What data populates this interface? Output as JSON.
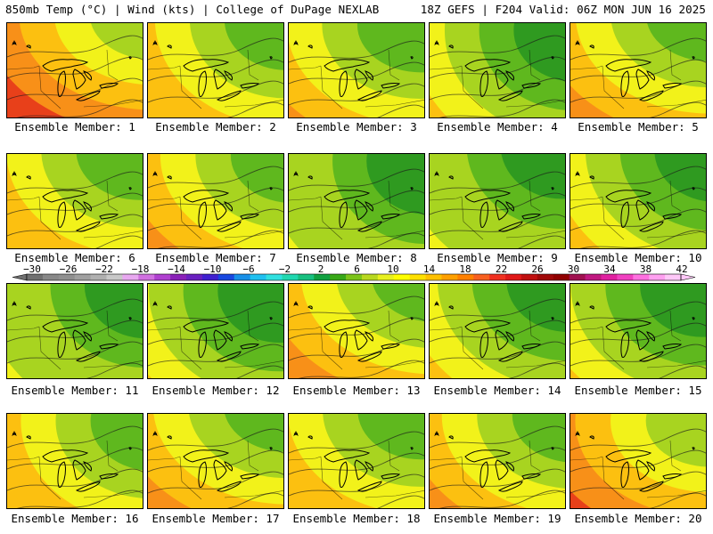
{
  "header": {
    "left": "850mb Temp (°C) | Wind (kts) | College of DuPage NEXLAB",
    "right": "18Z GEFS | F204 Valid: 06Z MON JUN 16 2025"
  },
  "members": [
    {
      "caption": "Ensemble Member: 1",
      "warmth": 0.7
    },
    {
      "caption": "Ensemble Member: 2",
      "warmth": 0.45
    },
    {
      "caption": "Ensemble Member: 3",
      "warmth": 0.6
    },
    {
      "caption": "Ensemble Member: 4",
      "warmth": 0.4
    },
    {
      "caption": "Ensemble Member: 5",
      "warmth": 0.62
    },
    {
      "caption": "Ensemble Member: 6",
      "warmth": 0.5
    },
    {
      "caption": "Ensemble Member: 7",
      "warmth": 0.6
    },
    {
      "caption": "Ensemble Member: 8",
      "warmth": 0.32
    },
    {
      "caption": "Ensemble Member: 9",
      "warmth": 0.3
    },
    {
      "caption": "Ensemble Member: 10",
      "warmth": 0.4
    },
    {
      "caption": "Ensemble Member: 11",
      "warmth": 0.35
    },
    {
      "caption": "Ensemble Member: 12",
      "warmth": 0.4
    },
    {
      "caption": "Ensemble Member: 13",
      "warmth": 0.62
    },
    {
      "caption": "Ensemble Member: 14",
      "warmth": 0.4
    },
    {
      "caption": "Ensemble Member: 15",
      "warmth": 0.42
    },
    {
      "caption": "Ensemble Member: 16",
      "warmth": 0.48
    },
    {
      "caption": "Ensemble Member: 17",
      "warmth": 0.62
    },
    {
      "caption": "Ensemble Member: 18",
      "warmth": 0.52
    },
    {
      "caption": "Ensemble Member: 19",
      "warmth": 0.62
    },
    {
      "caption": "Ensemble Member: 20",
      "warmth": 0.68
    }
  ],
  "colorbar": {
    "labels": [
      "-30",
      "-26",
      "-22",
      "-18",
      "-14",
      "-10",
      "-6",
      "-2",
      "2",
      "6",
      "10",
      "14",
      "18",
      "22",
      "26",
      "30",
      "34",
      "38",
      "42"
    ],
    "colors": [
      "#707070",
      "#888888",
      "#909090",
      "#a0a0a0",
      "#b0b0b0",
      "#c8c8c8",
      "#e8a8f0",
      "#d070e0",
      "#b040d0",
      "#8a20b8",
      "#6a20c0",
      "#4020d0",
      "#1848e0",
      "#1890e8",
      "#20c0f0",
      "#30e0e0",
      "#20d8b0",
      "#18c080",
      "#10a040",
      "#38a818",
      "#7cc41a",
      "#b8d820",
      "#e8f020",
      "#ffff00",
      "#ffe000",
      "#ffc000",
      "#ffa000",
      "#ff8000",
      "#f86020",
      "#f03020",
      "#e01818",
      "#c01010",
      "#a00808",
      "#900000",
      "#a01050",
      "#c01880",
      "#e020a0",
      "#f040c0",
      "#ff70e0",
      "#ffa0f0",
      "#ffc8f8"
    ]
  },
  "palette": {
    "green_dark": "#2f9a20",
    "green": "#5fb81e",
    "yellow_green": "#a8d420",
    "yellow": "#f2f21a",
    "orange_yellow": "#fcc010",
    "orange": "#f89018",
    "red": "#e8401a"
  }
}
